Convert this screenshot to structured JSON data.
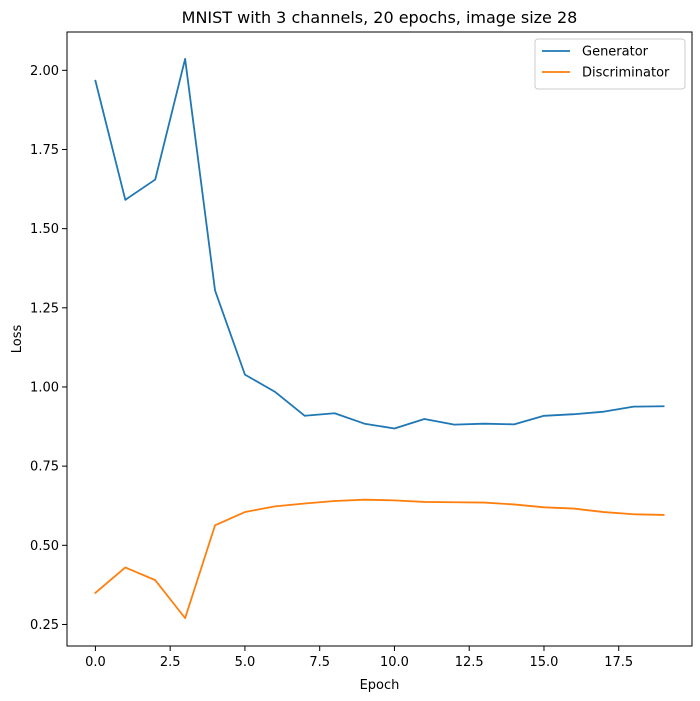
{
  "chart_data": {
    "type": "line",
    "title": "MNIST with 3 channels, 20 epochs, image size 28",
    "xlabel": "Epoch",
    "ylabel": "Loss",
    "xlim": [
      -0.95,
      19.95
    ],
    "ylim": [
      0.182,
      2.121
    ],
    "xticks": [
      0.0,
      2.5,
      5.0,
      7.5,
      10.0,
      12.5,
      15.0,
      17.5
    ],
    "xtick_labels": [
      "0.0",
      "2.5",
      "5.0",
      "7.5",
      "10.0",
      "12.5",
      "15.0",
      "17.5"
    ],
    "yticks": [
      0.25,
      0.5,
      0.75,
      1.0,
      1.25,
      1.5,
      1.75,
      2.0
    ],
    "ytick_labels": [
      "0.25",
      "0.50",
      "0.75",
      "1.00",
      "1.25",
      "1.50",
      "1.75",
      "2.00"
    ],
    "grid": false,
    "legend_position": "top-right",
    "x": [
      0,
      1,
      2,
      3,
      4,
      5,
      6,
      7,
      8,
      9,
      10,
      11,
      12,
      13,
      14,
      15,
      16,
      17,
      18,
      19
    ],
    "series": [
      {
        "name": "Generator",
        "color": "#1f77b4",
        "values": [
          1.967,
          1.591,
          1.655,
          2.036,
          1.305,
          1.039,
          0.985,
          0.909,
          0.917,
          0.884,
          0.869,
          0.899,
          0.881,
          0.884,
          0.882,
          0.909,
          0.914,
          0.922,
          0.938,
          0.939
        ]
      },
      {
        "name": "Discriminator",
        "color": "#ff7f0e",
        "values": [
          0.35,
          0.43,
          0.39,
          0.27,
          0.563,
          0.605,
          0.623,
          0.632,
          0.64,
          0.644,
          0.642,
          0.637,
          0.636,
          0.635,
          0.629,
          0.62,
          0.616,
          0.605,
          0.598,
          0.596
        ]
      }
    ]
  }
}
